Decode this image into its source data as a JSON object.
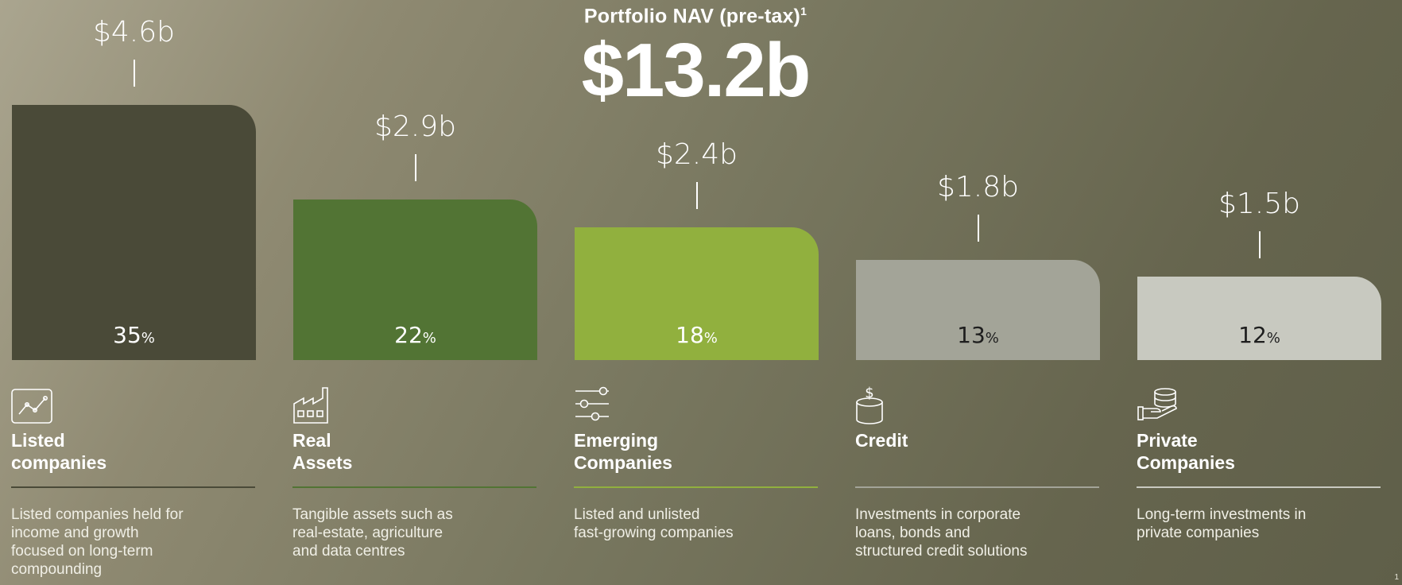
{
  "header": {
    "title": "Portfolio NAV (pre-tax)",
    "footnote_mark": "1",
    "total_value": "$13.2b"
  },
  "chart_data": {
    "type": "bar",
    "title": "Portfolio NAV (pre-tax)",
    "unit": "$b",
    "categories": [
      "Listed companies",
      "Real Assets",
      "Emerging Companies",
      "Credit",
      "Private Companies"
    ],
    "values": [
      4.6,
      2.9,
      2.4,
      1.8,
      1.5
    ],
    "value_labels": [
      "$4.6b",
      "$2.9b",
      "$2.4b",
      "$1.8b",
      "$1.5b"
    ],
    "percents": [
      35,
      22,
      18,
      13,
      12
    ],
    "percent_labels": [
      "35",
      "22",
      "18",
      "13",
      "12"
    ],
    "percent_unit": "%",
    "colors": [
      "#4a4a38",
      "#527434",
      "#91b03e",
      "#a3a498",
      "#c8c9c0"
    ],
    "percent_text_colors": [
      "#ffffff",
      "#ffffff",
      "#ffffff",
      "#1e1e1e",
      "#1e1e1e"
    ],
    "ylim": [
      0,
      4.6
    ]
  },
  "categories": [
    {
      "title": "Listed\ncompanies",
      "icon": "line-chart-icon",
      "rule_color": "#4a4a38",
      "description": "Listed companies held for\nincome and growth\nfocused on long-term\ncompounding"
    },
    {
      "title": "Real\nAssets",
      "icon": "factory-icon",
      "rule_color": "#527434",
      "description": "Tangible assets such as\nreal-estate, agriculture\nand data centres"
    },
    {
      "title": "Emerging\nCompanies",
      "icon": "sliders-icon",
      "rule_color": "#91b03e",
      "description": "Listed and unlisted\nfast-growing companies"
    },
    {
      "title": "Credit",
      "icon": "coin-stack-dollar-icon",
      "rule_color": "#a3a498",
      "description": "Investments in corporate\nloans, bonds and\nstructured credit solutions"
    },
    {
      "title": "Private\nCompanies",
      "icon": "hand-coins-icon",
      "rule_color": "#c8c9c0",
      "description": "Long-term investments in\nprivate companies"
    }
  ],
  "page_number": "1"
}
